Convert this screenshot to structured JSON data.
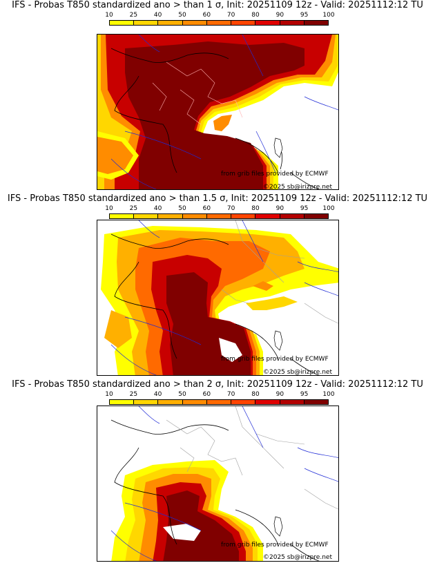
{
  "colorbar": {
    "labels": [
      "10",
      "25",
      "40",
      "50",
      "60",
      "70",
      "80",
      "90",
      "95",
      "100"
    ],
    "colors": [
      "#ffff00",
      "#ffd700",
      "#ffb000",
      "#ff8c00",
      "#ff6a00",
      "#ff4500",
      "#e00000",
      "#b30000",
      "#800000"
    ]
  },
  "colors": {
    "ocean": "#ffffff",
    "coast": "#000000",
    "rivers": "#1f2bd6",
    "borders_gray": "#a0a0a0",
    "darkred": "#800000",
    "red": "#c80000",
    "orange": "#ff8c00",
    "yellow": "#ffff00"
  },
  "panels": [
    {
      "title": "IFS - Probas T850  standardized ano > than 1 σ, Init: 20251109 12z - Valid: 20251112:12 TU",
      "credit_source": "from grib files provided by ECMWF",
      "credit_copyright": "©2025 sb@irizpre.net"
    },
    {
      "title": "IFS - Probas T850  standardized ano > than 1.5 σ, Init: 20251109 12z - Valid: 20251112:12 TU",
      "credit_source": "from grib files provided by ECMWF",
      "credit_copyright": "©2025 sb@irizpre.net"
    },
    {
      "title": "IFS - Probas T850  standardized ano > than 2 σ, Init: 20251109 12z - Valid: 20251112:12 TU",
      "credit_source": "from grib files provided by ECMWF",
      "credit_copyright": "©2025 sb@irizpre.net"
    }
  ]
}
